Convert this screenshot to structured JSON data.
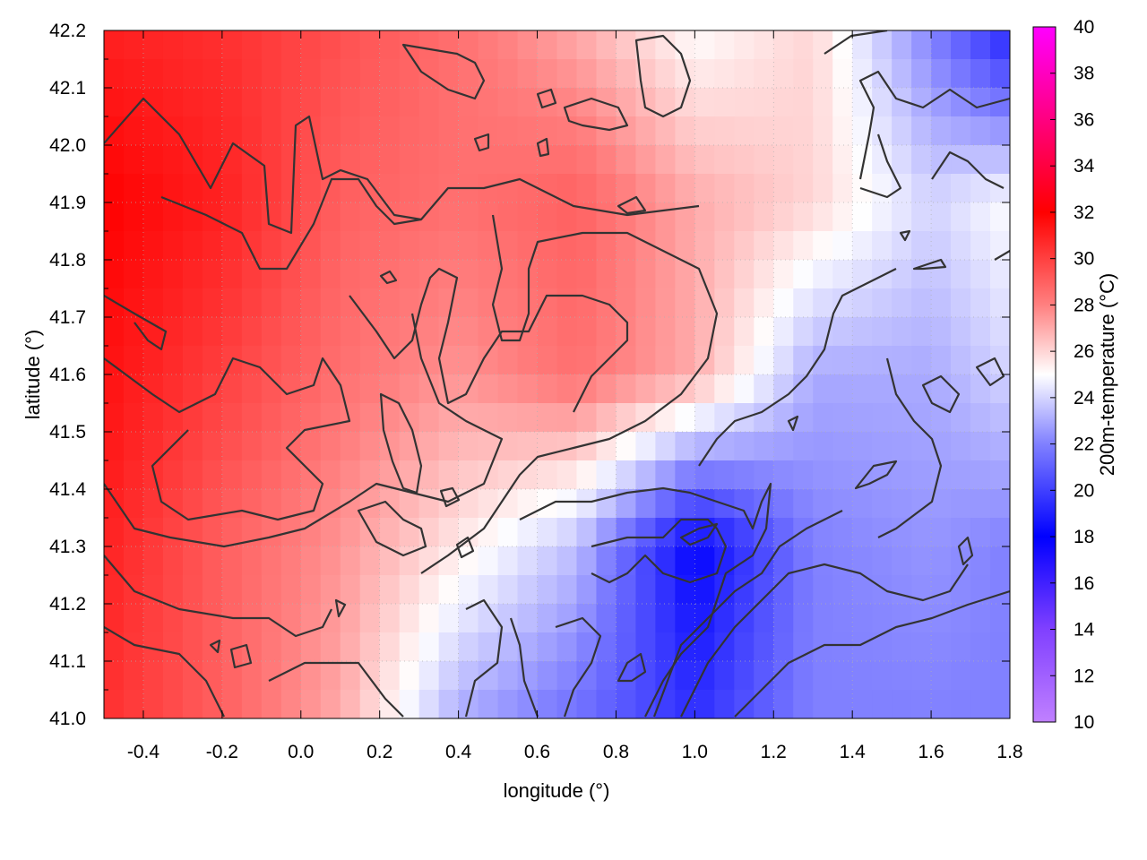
{
  "chart_data": {
    "type": "heatmap",
    "title": "",
    "xlabel": "longitude (°)",
    "ylabel": "latitude (°)",
    "colorbar_label": "200m-temperature (°C)",
    "xlim": [
      -0.5,
      1.8
    ],
    "ylim": [
      41.0,
      42.2
    ],
    "zlim": [
      10,
      40
    ],
    "x_ticks": [
      "-0.4",
      "-0.2",
      "0.0",
      "0.2",
      "0.4",
      "0.6",
      "0.8",
      "1.0",
      "1.2",
      "1.4",
      "1.6",
      "1.8"
    ],
    "y_ticks": [
      "41.0",
      "41.1",
      "41.2",
      "41.3",
      "41.4",
      "41.5",
      "41.6",
      "41.7",
      "41.8",
      "41.9",
      "42.0",
      "42.1",
      "42.2"
    ],
    "colorbar_ticks": [
      "10",
      "12",
      "14",
      "16",
      "18",
      "20",
      "22",
      "24",
      "26",
      "28",
      "30",
      "32",
      "34",
      "36",
      "38",
      "40"
    ],
    "colormap": [
      {
        "value": 10,
        "color": "#c080ff"
      },
      {
        "value": 14,
        "color": "#8040ff"
      },
      {
        "value": 18,
        "color": "#0000ff"
      },
      {
        "value": 22,
        "color": "#8080ff"
      },
      {
        "value": 25,
        "color": "#ffffff"
      },
      {
        "value": 28,
        "color": "#ff8080"
      },
      {
        "value": 32,
        "color": "#ff0000"
      },
      {
        "value": 36,
        "color": "#ff0080"
      },
      {
        "value": 40,
        "color": "#ff00ff"
      }
    ],
    "grid": true,
    "contour_color": "#333333",
    "field_grid": {
      "lon": [
        -0.5,
        -0.2,
        0.1,
        0.4,
        0.7,
        1.0,
        1.3,
        1.6,
        1.8
      ],
      "lat": [
        42.2,
        41.9,
        41.6,
        41.3,
        41.0
      ],
      "temperature": [
        [
          31,
          30.5,
          29.5,
          28.5,
          27,
          25,
          26,
          22,
          19
        ],
        [
          32,
          31,
          29,
          28.5,
          29,
          27,
          26,
          24,
          25
        ],
        [
          31.5,
          30,
          28.5,
          27.5,
          28.5,
          27,
          23,
          23,
          24
        ],
        [
          31,
          29,
          27.5,
          25.5,
          23.5,
          18,
          22,
          22.5,
          22
        ],
        [
          30.5,
          29,
          27,
          23,
          21.5,
          19.5,
          22,
          22,
          22
        ]
      ]
    }
  }
}
